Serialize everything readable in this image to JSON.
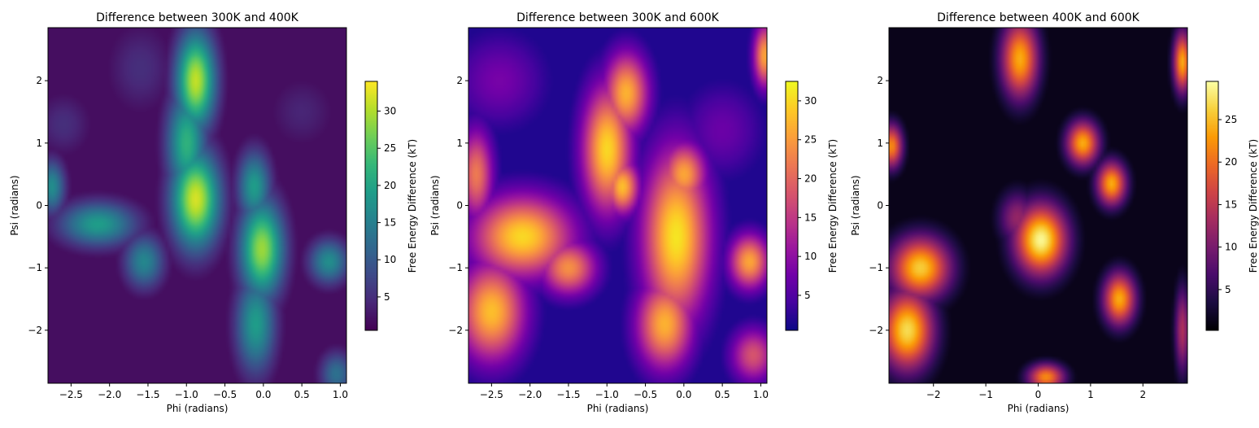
{
  "chart_data": [
    {
      "type": "heatmap",
      "title": "Difference between 300K and 400K",
      "xlabel": "Phi (radians)",
      "ylabel": "Psi (radians)",
      "xlim": [
        -2.8,
        1.08
      ],
      "ylim": [
        -2.85,
        2.85
      ],
      "x_ticks": [
        "−2.5",
        "−2.0",
        "−1.5",
        "−1.0",
        "−0.5",
        "0.0",
        "0.5",
        "1.0"
      ],
      "x_tick_values": [
        -2.5,
        -2.0,
        -1.5,
        -1.0,
        -0.5,
        0.0,
        0.5,
        1.0
      ],
      "y_ticks": [
        "2",
        "1",
        "0",
        "−1",
        "−2"
      ],
      "y_tick_values": [
        2,
        1,
        0,
        -1,
        -2
      ],
      "colormap": "viridis",
      "colorbar": {
        "label": "Free Energy Difference (kT)",
        "range": [
          0.5,
          34
        ],
        "ticks": [
          "5",
          "10",
          "15",
          "20",
          "25",
          "30"
        ],
        "tick_values": [
          5,
          10,
          15,
          20,
          25,
          30
        ]
      },
      "blobs": [
        {
          "x": -0.88,
          "y": 2.0,
          "sx": 0.18,
          "sy": 0.55,
          "v": 31
        },
        {
          "x": -0.88,
          "y": 0.1,
          "sx": 0.22,
          "sy": 0.55,
          "v": 32
        },
        {
          "x": -1.0,
          "y": 1.0,
          "sx": 0.18,
          "sy": 0.6,
          "v": 22
        },
        {
          "x": -0.02,
          "y": -0.7,
          "sx": 0.2,
          "sy": 0.55,
          "v": 29
        },
        {
          "x": -0.12,
          "y": 0.3,
          "sx": 0.15,
          "sy": 0.4,
          "v": 19
        },
        {
          "x": -0.1,
          "y": -1.9,
          "sx": 0.18,
          "sy": 0.55,
          "v": 19
        },
        {
          "x": -2.15,
          "y": -0.3,
          "sx": 0.35,
          "sy": 0.25,
          "v": 19
        },
        {
          "x": -1.55,
          "y": -0.9,
          "sx": 0.18,
          "sy": 0.3,
          "v": 16
        },
        {
          "x": 0.85,
          "y": -0.9,
          "sx": 0.18,
          "sy": 0.25,
          "v": 17
        },
        {
          "x": -2.75,
          "y": 0.3,
          "sx": 0.12,
          "sy": 0.3,
          "v": 17
        },
        {
          "x": 0.95,
          "y": -2.7,
          "sx": 0.15,
          "sy": 0.25,
          "v": 13
        },
        {
          "x": -2.6,
          "y": 1.3,
          "sx": 0.25,
          "sy": 0.35,
          "v": 5
        },
        {
          "x": 0.5,
          "y": 1.5,
          "sx": 0.3,
          "sy": 0.4,
          "v": 4
        },
        {
          "x": -1.6,
          "y": 2.2,
          "sx": 0.3,
          "sy": 0.5,
          "v": 5
        }
      ]
    },
    {
      "type": "heatmap",
      "title": "Difference between 300K and 600K",
      "xlabel": "Phi (radians)",
      "ylabel": "Psi (radians)",
      "xlim": [
        -2.8,
        1.08
      ],
      "ylim": [
        -2.85,
        2.85
      ],
      "x_ticks": [
        "−2.5",
        "−2.0",
        "−1.5",
        "−1.0",
        "−0.5",
        "0.0",
        "0.5",
        "1.0"
      ],
      "x_tick_values": [
        -2.5,
        -2.0,
        -1.5,
        -1.0,
        -0.5,
        0.0,
        0.5,
        1.0
      ],
      "y_ticks": [
        "2",
        "1",
        "0",
        "−1",
        "−2"
      ],
      "y_tick_values": [
        2,
        1,
        0,
        -1,
        -2
      ],
      "colormap": "plasma",
      "colorbar": {
        "label": "Free Energy Difference (kT)",
        "range": [
          0.5,
          32.5
        ],
        "ticks": [
          "5",
          "10",
          "15",
          "20",
          "25",
          "30"
        ],
        "tick_values": [
          5,
          10,
          15,
          20,
          25,
          30
        ]
      },
      "blobs": [
        {
          "x": -1.0,
          "y": 0.9,
          "sx": 0.22,
          "sy": 0.7,
          "v": 30
        },
        {
          "x": -0.75,
          "y": 1.8,
          "sx": 0.2,
          "sy": 0.45,
          "v": 27
        },
        {
          "x": -0.8,
          "y": 0.3,
          "sx": 0.15,
          "sy": 0.3,
          "v": 28
        },
        {
          "x": -0.1,
          "y": -0.5,
          "sx": 0.3,
          "sy": 0.95,
          "v": 31
        },
        {
          "x": -0.25,
          "y": -1.9,
          "sx": 0.25,
          "sy": 0.5,
          "v": 27
        },
        {
          "x": 0.0,
          "y": 0.5,
          "sx": 0.2,
          "sy": 0.35,
          "v": 26
        },
        {
          "x": -2.1,
          "y": -0.5,
          "sx": 0.45,
          "sy": 0.45,
          "v": 30
        },
        {
          "x": -2.5,
          "y": -1.7,
          "sx": 0.3,
          "sy": 0.55,
          "v": 28
        },
        {
          "x": -2.7,
          "y": 0.5,
          "sx": 0.15,
          "sy": 0.5,
          "v": 22
        },
        {
          "x": -1.5,
          "y": -1.0,
          "sx": 0.25,
          "sy": 0.3,
          "v": 24
        },
        {
          "x": 0.85,
          "y": -0.9,
          "sx": 0.18,
          "sy": 0.3,
          "v": 26
        },
        {
          "x": 1.05,
          "y": 2.4,
          "sx": 0.1,
          "sy": 0.35,
          "v": 26
        },
        {
          "x": 0.9,
          "y": -2.4,
          "sx": 0.2,
          "sy": 0.3,
          "v": 18
        },
        {
          "x": -2.4,
          "y": 2.0,
          "sx": 0.4,
          "sy": 0.5,
          "v": 8
        },
        {
          "x": 0.5,
          "y": 1.2,
          "sx": 0.35,
          "sy": 0.5,
          "v": 7
        }
      ]
    },
    {
      "type": "heatmap",
      "title": "Difference between 400K and 600K",
      "xlabel": "Phi (radians)",
      "ylabel": "Psi (radians)",
      "xlim": [
        -2.85,
        2.85
      ],
      "ylim": [
        -2.85,
        2.85
      ],
      "x_ticks": [
        "−2",
        "−1",
        "0",
        "1",
        "2"
      ],
      "x_tick_values": [
        -2,
        -1,
        0,
        1,
        2
      ],
      "y_ticks": [
        "2",
        "1",
        "0",
        "−1",
        "−2"
      ],
      "y_tick_values": [
        2,
        1,
        0,
        -1,
        -2
      ],
      "colormap": "inferno",
      "colorbar": {
        "label": "Free Energy Difference (kT)",
        "range": [
          0.2,
          29.5
        ],
        "ticks": [
          "5",
          "10",
          "15",
          "20",
          "25"
        ],
        "tick_values": [
          5,
          10,
          15,
          20,
          25
        ]
      },
      "blobs": [
        {
          "x": 0.05,
          "y": -0.55,
          "sx": 0.35,
          "sy": 0.4,
          "v": 29
        },
        {
          "x": -0.4,
          "y": -0.2,
          "sx": 0.25,
          "sy": 0.3,
          "v": 12
        },
        {
          "x": -0.35,
          "y": 2.35,
          "sx": 0.25,
          "sy": 0.45,
          "v": 24
        },
        {
          "x": 0.85,
          "y": 1.0,
          "sx": 0.22,
          "sy": 0.25,
          "v": 24
        },
        {
          "x": 1.4,
          "y": 0.35,
          "sx": 0.2,
          "sy": 0.25,
          "v": 24
        },
        {
          "x": 1.55,
          "y": -1.5,
          "sx": 0.22,
          "sy": 0.3,
          "v": 24
        },
        {
          "x": -2.25,
          "y": -1.0,
          "sx": 0.4,
          "sy": 0.35,
          "v": 26
        },
        {
          "x": -2.5,
          "y": -2.0,
          "sx": 0.35,
          "sy": 0.45,
          "v": 27
        },
        {
          "x": -2.8,
          "y": 0.95,
          "sx": 0.15,
          "sy": 0.25,
          "v": 22
        },
        {
          "x": 2.75,
          "y": 2.3,
          "sx": 0.12,
          "sy": 0.35,
          "v": 24
        },
        {
          "x": 0.15,
          "y": -2.75,
          "sx": 0.25,
          "sy": 0.15,
          "v": 22
        },
        {
          "x": 2.75,
          "y": -2.0,
          "sx": 0.1,
          "sy": 0.5,
          "v": 14
        }
      ]
    }
  ]
}
